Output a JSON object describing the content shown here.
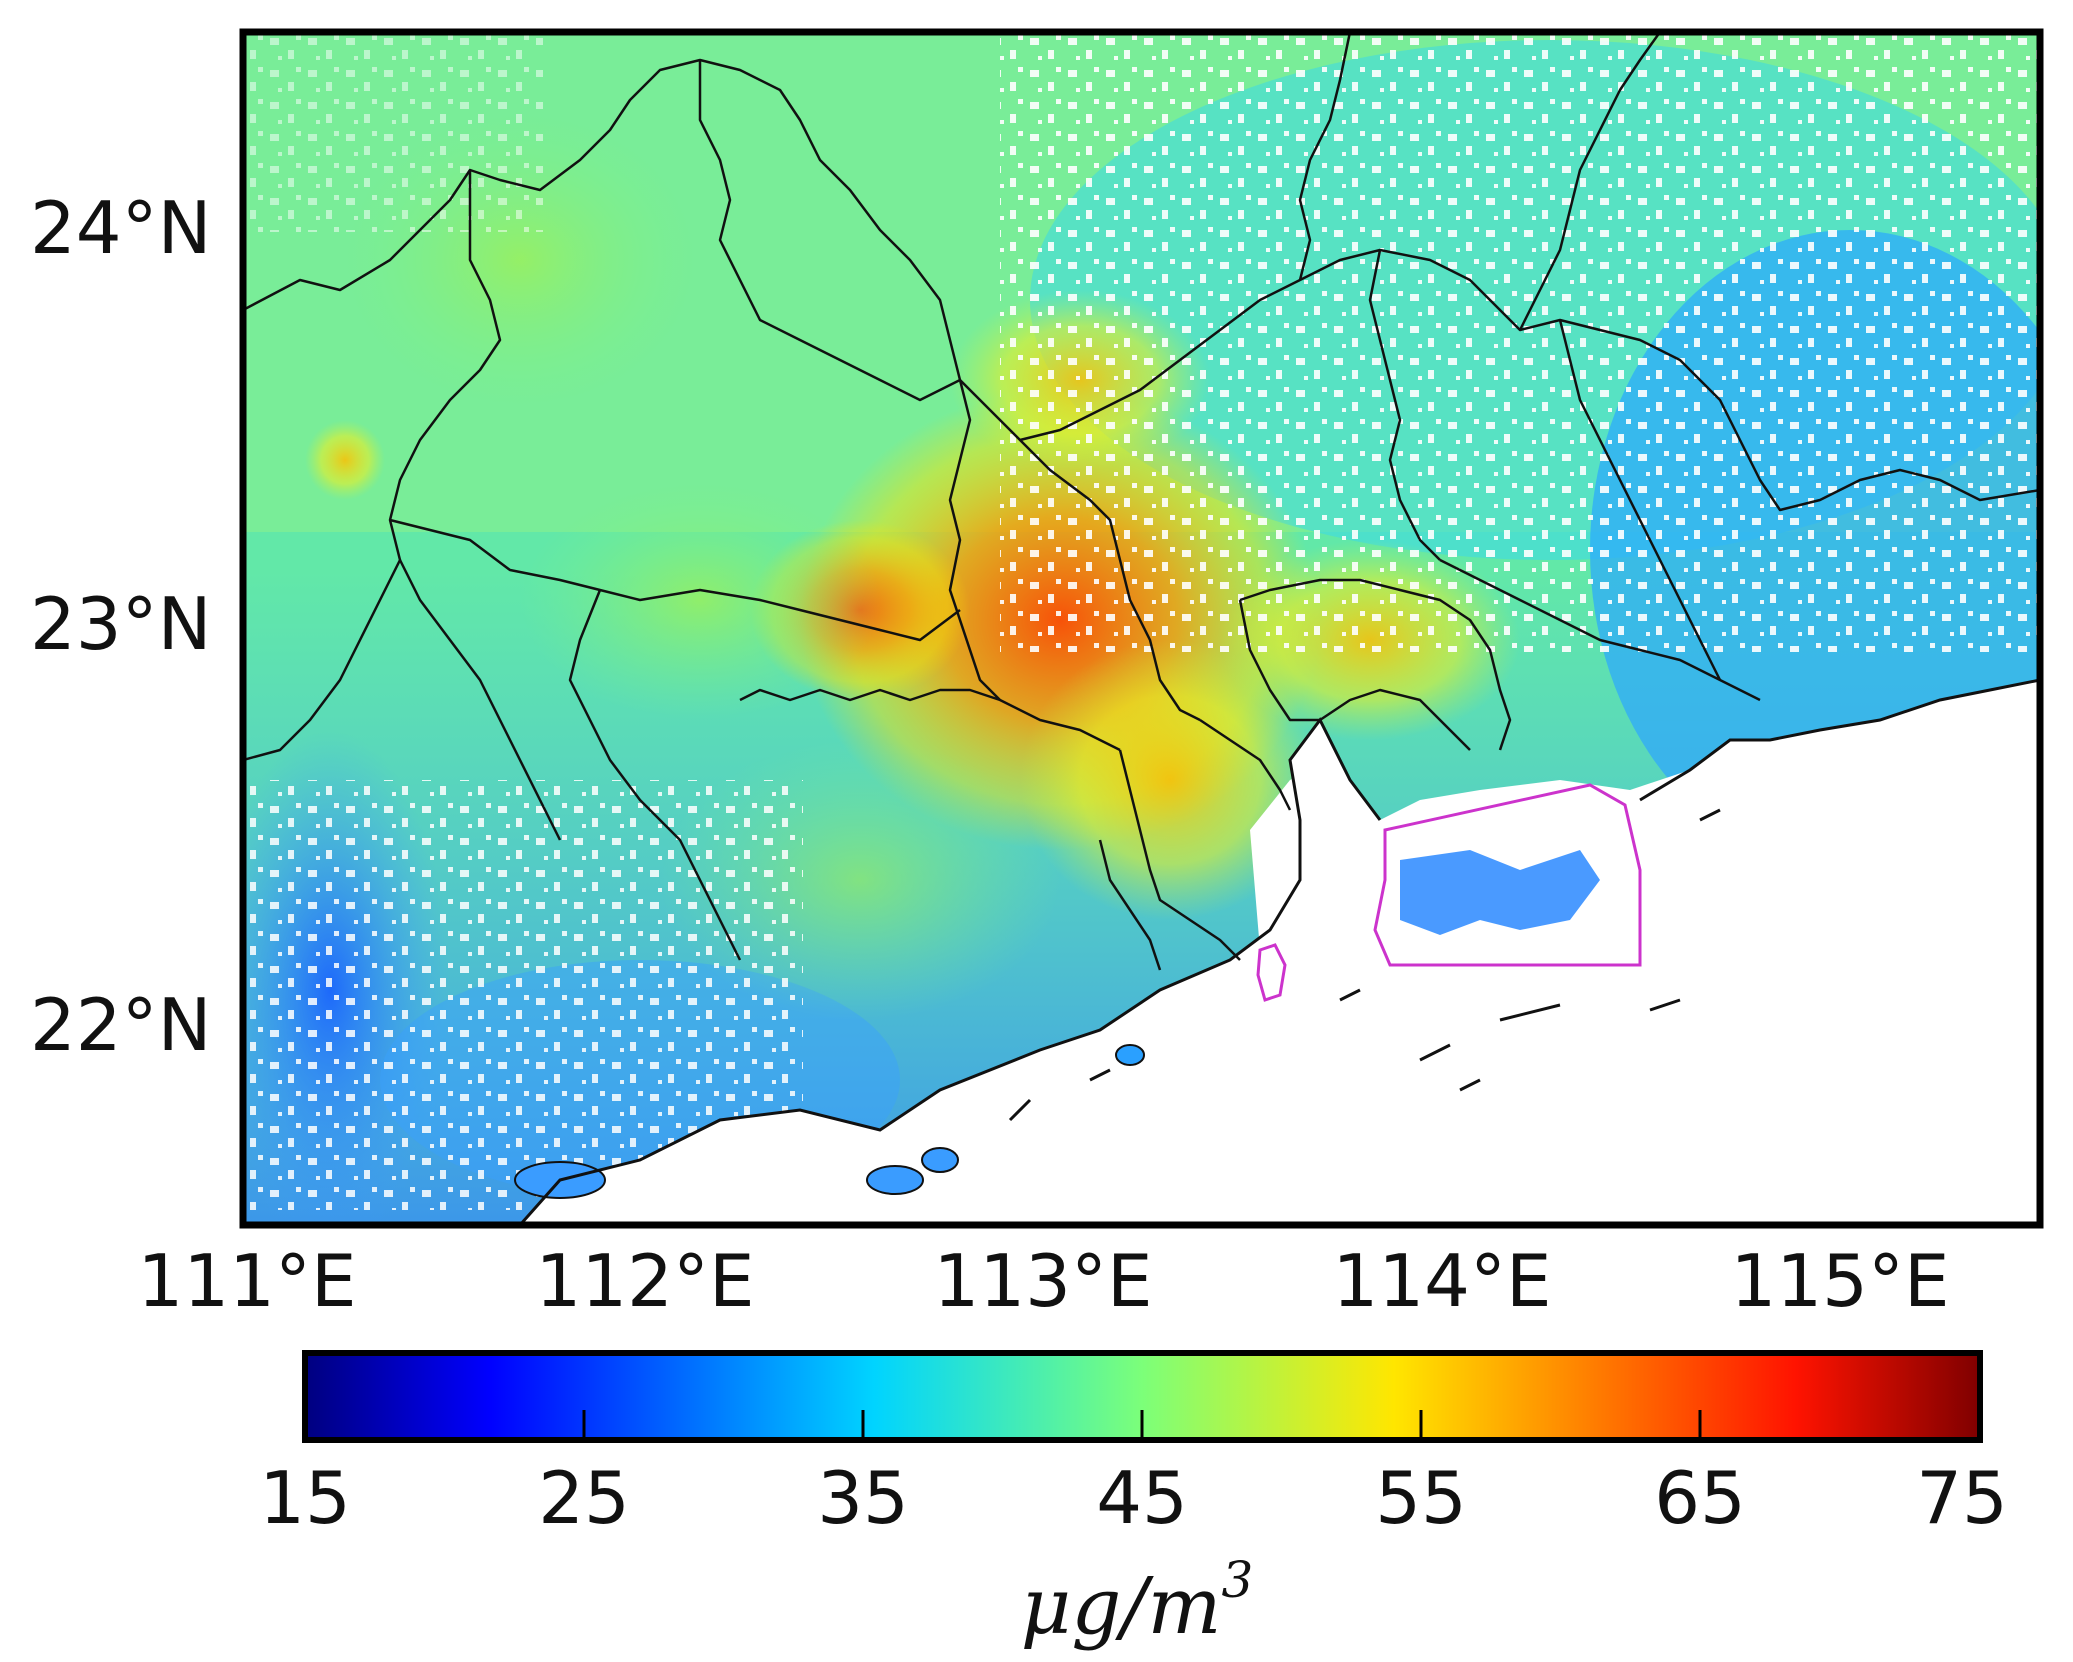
{
  "map": {
    "lat_ticks": [
      "24°N",
      "23°N",
      "22°N"
    ],
    "lon_ticks": [
      "111°E",
      "112°E",
      "113°E",
      "114°E",
      "115°E"
    ],
    "extent": {
      "lon": [
        111.0,
        115.5
      ],
      "lat": [
        21.5,
        24.5
      ]
    },
    "highlighted_regions": [
      "hong-kong-boundary",
      "macau-boundary"
    ],
    "boundary_color": "#111111",
    "highlight_color": "#cc33cc",
    "no_data_color": "#ffffff"
  },
  "colorbar": {
    "ticks": [
      "15",
      "25",
      "35",
      "45",
      "55",
      "65",
      "75"
    ],
    "min": 15,
    "max": 75,
    "colormap": "jet",
    "units_base": "μg/m",
    "units_exp": "3"
  }
}
